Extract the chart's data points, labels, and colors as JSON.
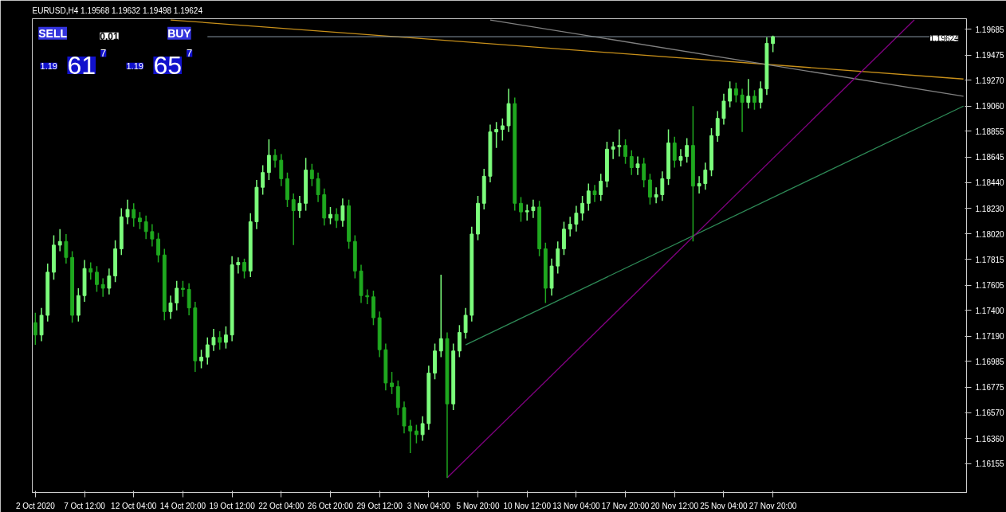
{
  "chart_data": {
    "type": "candlestick",
    "title": "EURUSD,H4  1.19568 1.19632 1.19498 1.19624",
    "categories": [
      "2 Oct 2020",
      null,
      null,
      null,
      null,
      null,
      null,
      null,
      "7 Oct 12:00",
      null,
      null,
      null,
      null,
      null,
      null,
      null,
      "12 Oct 04:00",
      null,
      null,
      null,
      null,
      null,
      null,
      null,
      "14 Oct 20:00",
      null,
      null,
      null,
      null,
      null,
      null,
      null,
      "19 Oct 12:00",
      null,
      null,
      null,
      null,
      null,
      null,
      null,
      "22 Oct 04:00",
      null,
      null,
      null,
      null,
      null,
      null,
      null,
      "26 Oct 20:00",
      null,
      null,
      null,
      null,
      null,
      null,
      null,
      "29 Oct 12:00",
      null,
      null,
      null,
      null,
      null,
      null,
      null,
      "3 Nov 04:00",
      null,
      null,
      null,
      null,
      null,
      null,
      null,
      "5 Nov 20:00",
      null,
      null,
      null,
      null,
      null,
      null,
      null,
      "10 Nov 12:00",
      null,
      null,
      null,
      null,
      null,
      null,
      null,
      "13 Nov 04:00",
      null,
      null,
      null,
      null,
      null,
      null,
      null,
      "17 Nov 20:00",
      null,
      null,
      null,
      null,
      null,
      null,
      null,
      "20 Nov 12:00",
      null,
      null,
      null,
      null,
      null,
      null,
      null,
      "25 Nov 04:00",
      null,
      null,
      null,
      null,
      null,
      null,
      null,
      "27 Nov 20:00",
      null,
      null,
      null,
      null,
      null,
      null,
      null,
      null,
      null,
      null,
      null,
      null,
      null,
      null,
      null,
      null,
      null,
      null,
      null,
      null,
      null,
      null,
      null,
      null,
      null,
      null,
      null,
      null,
      null,
      null,
      null
    ],
    "ohlc": [
      [
        1.173,
        1.1738,
        1.1712,
        1.172
      ],
      [
        1.172,
        1.1742,
        1.1715,
        1.1736
      ],
      [
        1.1736,
        1.1778,
        1.1731,
        1.1771
      ],
      [
        1.1771,
        1.1801,
        1.1765,
        1.1793
      ],
      [
        1.1793,
        1.1806,
        1.1788,
        1.1796
      ],
      [
        1.1796,
        1.1802,
        1.1778,
        1.1783
      ],
      [
        1.1783,
        1.1788,
        1.173,
        1.1736
      ],
      [
        1.1736,
        1.1758,
        1.1731,
        1.1752
      ],
      [
        1.1752,
        1.1781,
        1.1747,
        1.1774
      ],
      [
        1.1774,
        1.1779,
        1.1765,
        1.1771
      ],
      [
        1.1771,
        1.1776,
        1.1755,
        1.1761
      ],
      [
        1.1761,
        1.1766,
        1.1751,
        1.1758
      ],
      [
        1.1758,
        1.1774,
        1.1753,
        1.1768
      ],
      [
        1.1768,
        1.1797,
        1.1763,
        1.179
      ],
      [
        1.179,
        1.1823,
        1.1785,
        1.1816
      ],
      [
        1.1816,
        1.183,
        1.181,
        1.1822
      ],
      [
        1.1822,
        1.1827,
        1.1808,
        1.1815
      ],
      [
        1.1815,
        1.182,
        1.1806,
        1.1812
      ],
      [
        1.1812,
        1.1817,
        1.1798,
        1.1804
      ],
      [
        1.1804,
        1.181,
        1.1792,
        1.1798
      ],
      [
        1.1798,
        1.1803,
        1.1779,
        1.1785
      ],
      [
        1.1785,
        1.179,
        1.1732,
        1.1739
      ],
      [
        1.1739,
        1.1752,
        1.1733,
        1.1746
      ],
      [
        1.1746,
        1.1764,
        1.174,
        1.1758
      ],
      [
        1.1758,
        1.1764,
        1.1751,
        1.1757
      ],
      [
        1.1757,
        1.1762,
        1.1736,
        1.1742
      ],
      [
        1.1742,
        1.1747,
        1.169,
        1.1699
      ],
      [
        1.1699,
        1.1708,
        1.1693,
        1.1702
      ],
      [
        1.1702,
        1.1718,
        1.1696,
        1.1712
      ],
      [
        1.1712,
        1.1725,
        1.1707,
        1.1718
      ],
      [
        1.1718,
        1.1723,
        1.1708,
        1.1714
      ],
      [
        1.1714,
        1.1727,
        1.1709,
        1.172
      ],
      [
        1.172,
        1.1784,
        1.1715,
        1.1777
      ],
      [
        1.1777,
        1.1783,
        1.177,
        1.1779
      ],
      [
        1.1779,
        1.1782,
        1.1766,
        1.1772
      ],
      [
        1.1772,
        1.1819,
        1.1767,
        1.1812
      ],
      [
        1.1812,
        1.1846,
        1.1806,
        1.184
      ],
      [
        1.184,
        1.1858,
        1.1834,
        1.1852
      ],
      [
        1.1852,
        1.1879,
        1.1846,
        1.1866
      ],
      [
        1.1866,
        1.1871,
        1.1856,
        1.1862
      ],
      [
        1.1862,
        1.1867,
        1.1841,
        1.1847
      ],
      [
        1.1847,
        1.1852,
        1.1824,
        1.183
      ],
      [
        1.183,
        1.1835,
        1.1793,
        1.1821
      ],
      [
        1.1821,
        1.1833,
        1.1815,
        1.1827
      ],
      [
        1.1827,
        1.1864,
        1.1821,
        1.1854
      ],
      [
        1.1854,
        1.1859,
        1.1841,
        1.1847
      ],
      [
        1.1847,
        1.1852,
        1.1828,
        1.1834
      ],
      [
        1.1834,
        1.1839,
        1.1809,
        1.1815
      ],
      [
        1.1815,
        1.1824,
        1.181,
        1.1818
      ],
      [
        1.1818,
        1.1823,
        1.1807,
        1.1813
      ],
      [
        1.1813,
        1.1831,
        1.1808,
        1.1825
      ],
      [
        1.1825,
        1.183,
        1.179,
        1.1796
      ],
      [
        1.1796,
        1.1801,
        1.1766,
        1.1772
      ],
      [
        1.1772,
        1.1777,
        1.1746,
        1.1752
      ],
      [
        1.1752,
        1.1757,
        1.1745,
        1.1751
      ],
      [
        1.1751,
        1.1756,
        1.1728,
        1.1734
      ],
      [
        1.1734,
        1.1739,
        1.1702,
        1.1708
      ],
      [
        1.1708,
        1.1713,
        1.1675,
        1.1681
      ],
      [
        1.1681,
        1.169,
        1.1672,
        1.1678
      ],
      [
        1.1678,
        1.1683,
        1.1655,
        1.1661
      ],
      [
        1.1661,
        1.1666,
        1.164,
        1.1646
      ],
      [
        1.1646,
        1.1651,
        1.1624,
        1.1642
      ],
      [
        1.1642,
        1.1647,
        1.1632,
        1.1639
      ],
      [
        1.1639,
        1.1654,
        1.1634,
        1.1648
      ],
      [
        1.1648,
        1.1695,
        1.1643,
        1.1689
      ],
      [
        1.1689,
        1.1713,
        1.1684,
        1.1707
      ],
      [
        1.1707,
        1.1769,
        1.1702,
        1.1717
      ],
      [
        1.1717,
        1.1722,
        1.1604,
        1.1664
      ],
      [
        1.1664,
        1.1713,
        1.1659,
        1.1707
      ],
      [
        1.1707,
        1.1728,
        1.1702,
        1.1722
      ],
      [
        1.1722,
        1.1742,
        1.1717,
        1.1736
      ],
      [
        1.1736,
        1.1808,
        1.1731,
        1.1802
      ],
      [
        1.1802,
        1.1833,
        1.1797,
        1.1827
      ],
      [
        1.1827,
        1.1855,
        1.1822,
        1.1849
      ],
      [
        1.1849,
        1.1891,
        1.1844,
        1.1885
      ],
      [
        1.1885,
        1.1893,
        1.1872,
        1.1887
      ],
      [
        1.1887,
        1.1896,
        1.1878,
        1.189
      ],
      [
        1.189,
        1.192,
        1.1885,
        1.1908
      ],
      [
        1.1908,
        1.1913,
        1.1821,
        1.1827
      ],
      [
        1.1827,
        1.1832,
        1.1812,
        1.182
      ],
      [
        1.182,
        1.1826,
        1.1813,
        1.1821
      ],
      [
        1.1821,
        1.183,
        1.1815,
        1.1824
      ],
      [
        1.1824,
        1.1829,
        1.1784,
        1.179
      ],
      [
        1.179,
        1.1795,
        1.1746,
        1.1758
      ],
      [
        1.1758,
        1.1782,
        1.1752,
        1.1776
      ],
      [
        1.1776,
        1.1796,
        1.177,
        1.179
      ],
      [
        1.179,
        1.1812,
        1.1785,
        1.1806
      ],
      [
        1.1806,
        1.1816,
        1.18,
        1.181
      ],
      [
        1.181,
        1.1825,
        1.1804,
        1.1819
      ],
      [
        1.1819,
        1.1833,
        1.1813,
        1.1827
      ],
      [
        1.1827,
        1.1843,
        1.1821,
        1.1837
      ],
      [
        1.1837,
        1.1842,
        1.1828,
        1.1834
      ],
      [
        1.1834,
        1.1851,
        1.1829,
        1.1845
      ],
      [
        1.1845,
        1.1877,
        1.184,
        1.1871
      ],
      [
        1.1871,
        1.1877,
        1.1863,
        1.1873
      ],
      [
        1.1873,
        1.1887,
        1.1865,
        1.1874
      ],
      [
        1.1874,
        1.1879,
        1.1859,
        1.1865
      ],
      [
        1.1865,
        1.187,
        1.185,
        1.1856
      ],
      [
        1.1856,
        1.1865,
        1.185,
        1.1859
      ],
      [
        1.1859,
        1.1864,
        1.184,
        1.1846
      ],
      [
        1.1846,
        1.1851,
        1.1826,
        1.1832
      ],
      [
        1.1832,
        1.184,
        1.1827,
        1.1834
      ],
      [
        1.1834,
        1.1853,
        1.1829,
        1.1847
      ],
      [
        1.1847,
        1.1887,
        1.1842,
        1.1876
      ],
      [
        1.1876,
        1.1881,
        1.1856,
        1.1862
      ],
      [
        1.1862,
        1.1871,
        1.1857,
        1.1865
      ],
      [
        1.1865,
        1.188,
        1.186,
        1.1874
      ],
      [
        1.1874,
        1.1906,
        1.1796,
        1.1841
      ],
      [
        1.1841,
        1.1849,
        1.1835,
        1.1843
      ],
      [
        1.1843,
        1.186,
        1.1838,
        1.1854
      ],
      [
        1.1854,
        1.1888,
        1.1849,
        1.1882
      ],
      [
        1.1882,
        1.1902,
        1.1877,
        1.1896
      ],
      [
        1.1896,
        1.1916,
        1.1891,
        1.191
      ],
      [
        1.191,
        1.1926,
        1.1905,
        1.192
      ],
      [
        1.192,
        1.1925,
        1.1909,
        1.1915
      ],
      [
        1.1915,
        1.192,
        1.1885,
        1.1909
      ],
      [
        1.1909,
        1.1928,
        1.1904,
        1.1914
      ],
      [
        1.1914,
        1.1919,
        1.1903,
        1.1909
      ],
      [
        1.1909,
        1.1926,
        1.1904,
        1.192
      ],
      [
        1.192,
        1.1962,
        1.1915,
        1.1957
      ],
      [
        1.19568,
        1.19632,
        1.19498,
        1.19624
      ],
      null,
      null,
      null,
      null,
      null,
      null,
      null,
      null,
      null,
      null,
      null,
      null,
      null,
      null,
      null,
      null,
      null,
      null,
      null,
      null,
      null,
      null,
      null,
      null,
      null,
      null,
      null,
      null,
      null,
      null,
      null
    ],
    "colors": [
      "#1fa81f",
      "#7cfc7c",
      "#7cfc7c",
      "#7cfc7c",
      "#7cfc7c",
      "#1fa81f",
      "#1fa81f",
      "#7cfc7c",
      "#7cfc7c",
      "#1fa81f",
      "#1fa81f",
      "#1fa81f",
      "#7cfc7c",
      "#7cfc7c",
      "#7cfc7c",
      "#7cfc7c",
      "#1fa81f",
      "#1fa81f",
      "#1fa81f",
      "#1fa81f",
      "#1fa81f",
      "#1fa81f",
      "#7cfc7c",
      "#7cfc7c",
      "#1fa81f",
      "#1fa81f",
      "#1fa81f",
      "#7cfc7c",
      "#7cfc7c",
      "#7cfc7c",
      "#1fa81f",
      "#7cfc7c",
      "#7cfc7c",
      "#7cfc7c",
      "#1fa81f",
      "#7cfc7c",
      "#7cfc7c",
      "#7cfc7c",
      "#7cfc7c",
      "#1fa81f",
      "#1fa81f",
      "#1fa81f",
      "#1fa81f",
      "#7cfc7c",
      "#7cfc7c",
      "#1fa81f",
      "#1fa81f",
      "#1fa81f",
      "#7cfc7c",
      "#1fa81f",
      "#7cfc7c",
      "#1fa81f",
      "#1fa81f",
      "#1fa81f",
      "#1fa81f",
      "#1fa81f",
      "#1fa81f",
      "#1fa81f",
      "#1fa81f",
      "#1fa81f",
      "#1fa81f",
      "#1fa81f",
      "#1fa81f",
      "#7cfc7c",
      "#7cfc7c",
      "#7cfc7c",
      "#7cfc7c",
      "#1fa81f",
      "#7cfc7c",
      "#7cfc7c",
      "#7cfc7c",
      "#7cfc7c",
      "#7cfc7c",
      "#7cfc7c",
      "#7cfc7c",
      "#7cfc7c",
      "#7cfc7c",
      "#7cfc7c",
      "#1fa81f",
      "#1fa81f",
      "#7cfc7c",
      "#7cfc7c",
      "#1fa81f",
      "#1fa81f",
      "#7cfc7c",
      "#7cfc7c",
      "#7cfc7c",
      "#7cfc7c",
      "#7cfc7c",
      "#7cfc7c",
      "#7cfc7c",
      "#1fa81f",
      "#7cfc7c",
      "#7cfc7c",
      "#7cfc7c",
      "#7cfc7c",
      "#1fa81f",
      "#1fa81f",
      "#7cfc7c",
      "#1fa81f",
      "#1fa81f",
      "#7cfc7c",
      "#7cfc7c",
      "#7cfc7c",
      "#1fa81f",
      "#7cfc7c",
      "#7cfc7c",
      "#1fa81f",
      "#7cfc7c",
      "#7cfc7c",
      "#7cfc7c",
      "#7cfc7c",
      "#7cfc7c",
      "#7cfc7c",
      "#1fa81f",
      "#1fa81f",
      "#7cfc7c",
      "#1fa81f",
      "#7cfc7c",
      "#7cfc7c",
      "#7cfc7c",
      null,
      null,
      null,
      null,
      null,
      null,
      null,
      null,
      null,
      null,
      null,
      null,
      null,
      null,
      null,
      null,
      null,
      null,
      null,
      null,
      null,
      null,
      null,
      null,
      null,
      null,
      null,
      null,
      null,
      null,
      null
    ],
    "series": [
      {
        "type": "line",
        "color": "#c8901a",
        "values": [
          null,
          null,
          null,
          null,
          null,
          null,
          null,
          null,
          null,
          null,
          null,
          null,
          null,
          null,
          null,
          null,
          null,
          null,
          null,
          null,
          null,
          null,
          1.1976,
          null,
          null,
          null,
          null,
          null,
          null,
          null,
          null,
          null,
          null,
          null,
          null,
          null,
          null,
          null,
          null,
          null,
          null,
          null,
          null,
          null,
          null,
          null,
          null,
          null,
          null,
          null,
          null,
          null,
          null,
          null,
          null,
          null,
          null,
          null,
          null,
          null,
          null,
          null,
          null,
          null,
          null,
          null,
          null,
          null,
          null,
          null,
          null,
          null,
          null,
          null,
          null,
          null,
          null,
          null,
          null,
          null,
          null,
          null,
          null,
          null,
          null,
          null,
          null,
          null,
          null,
          null,
          null,
          null,
          null,
          null,
          null,
          null,
          null,
          null,
          null,
          null,
          null,
          null,
          null,
          null,
          null,
          null,
          null,
          null,
          null,
          null,
          null,
          null,
          null,
          null,
          null,
          null,
          null,
          null,
          null,
          null,
          null,
          null,
          null,
          null,
          null,
          null,
          null,
          null,
          null,
          null,
          null,
          null,
          null,
          null,
          null,
          null,
          null,
          null,
          null,
          null,
          null,
          null,
          null,
          null,
          null,
          null,
          null,
          null,
          null,
          null,
          null,
          1.1928
        ]
      },
      {
        "type": "line",
        "color": "#808080",
        "values": [
          null,
          null,
          null,
          null,
          null,
          null,
          null,
          null,
          null,
          null,
          null,
          null,
          null,
          null,
          null,
          null,
          null,
          null,
          null,
          null,
          null,
          null,
          null,
          null,
          null,
          null,
          null,
          null,
          null,
          null,
          null,
          null,
          null,
          null,
          null,
          null,
          null,
          null,
          null,
          null,
          null,
          null,
          null,
          null,
          null,
          null,
          null,
          null,
          null,
          null,
          null,
          null,
          null,
          null,
          null,
          null,
          null,
          null,
          null,
          null,
          null,
          null,
          null,
          null,
          null,
          null,
          null,
          null,
          null,
          null,
          null,
          null,
          null,
          null,
          1.1976,
          null,
          null,
          null,
          null,
          null,
          null,
          null,
          null,
          null,
          null,
          null,
          null,
          null,
          null,
          null,
          null,
          null,
          null,
          null,
          null,
          null,
          null,
          null,
          null,
          null,
          null,
          null,
          null,
          null,
          null,
          null,
          null,
          null,
          null,
          null,
          null,
          null,
          null,
          null,
          null,
          null,
          null,
          null,
          null,
          null,
          null,
          null,
          null,
          null,
          null,
          null,
          null,
          null,
          null,
          null,
          null,
          null,
          null,
          null,
          null,
          null,
          null,
          null,
          null,
          null,
          null,
          null,
          null,
          null,
          null,
          null,
          null,
          null,
          null,
          null,
          null,
          1.1914
        ]
      },
      {
        "type": "line",
        "color": "#2e8b57",
        "values": [
          null,
          null,
          null,
          null,
          null,
          null,
          null,
          null,
          null,
          null,
          null,
          null,
          null,
          null,
          null,
          null,
          null,
          null,
          null,
          null,
          null,
          null,
          null,
          null,
          null,
          null,
          null,
          null,
          null,
          null,
          null,
          null,
          null,
          null,
          null,
          null,
          null,
          null,
          null,
          null,
          null,
          null,
          null,
          null,
          null,
          null,
          null,
          null,
          null,
          null,
          null,
          null,
          null,
          null,
          null,
          null,
          null,
          null,
          null,
          null,
          null,
          null,
          null,
          null,
          null,
          null,
          null,
          null,
          null,
          null,
          1.1712,
          null,
          null,
          null,
          null,
          null,
          null,
          null,
          null,
          null,
          null,
          null,
          null,
          null,
          null,
          null,
          null,
          null,
          null,
          null,
          null,
          null,
          null,
          null,
          null,
          null,
          null,
          null,
          null,
          null,
          null,
          null,
          null,
          null,
          null,
          null,
          null,
          null,
          null,
          null,
          null,
          null,
          null,
          null,
          null,
          null,
          null,
          null,
          null,
          null,
          null,
          null,
          null,
          null,
          null,
          null,
          null,
          null,
          null,
          null,
          null,
          null,
          null,
          null,
          null,
          null,
          null,
          null,
          null,
          null,
          null,
          null,
          null,
          null,
          null,
          null,
          null,
          null,
          null,
          null,
          null,
          1.1906
        ]
      },
      {
        "type": "line",
        "color": "#800080",
        "values": [
          null,
          null,
          null,
          null,
          null,
          null,
          null,
          null,
          null,
          null,
          null,
          null,
          null,
          null,
          null,
          null,
          null,
          null,
          null,
          null,
          null,
          null,
          null,
          null,
          null,
          null,
          null,
          null,
          null,
          null,
          null,
          null,
          null,
          null,
          null,
          null,
          null,
          null,
          null,
          null,
          null,
          null,
          null,
          null,
          null,
          null,
          null,
          null,
          null,
          null,
          null,
          null,
          null,
          null,
          null,
          null,
          null,
          null,
          null,
          null,
          null,
          null,
          null,
          null,
          null,
          null,
          null,
          1.1604,
          null,
          null,
          null,
          null,
          null,
          null,
          null,
          null,
          null,
          null,
          null,
          null,
          null,
          null,
          null,
          null,
          null,
          null,
          null,
          null,
          null,
          null,
          null,
          null,
          null,
          null,
          null,
          null,
          null,
          null,
          null,
          null,
          null,
          null,
          null,
          null,
          null,
          null,
          null,
          null,
          null,
          null,
          null,
          null,
          null,
          null,
          null,
          null,
          null,
          null,
          null,
          null,
          null,
          null,
          null,
          null,
          null,
          null,
          null,
          null,
          null,
          null,
          null,
          null,
          null,
          null,
          null,
          null,
          null,
          null,
          null,
          null,
          null,
          null,
          null,
          1.1976,
          null,
          null,
          null,
          null,
          null,
          null,
          null,
          null
        ]
      }
    ],
    "ref_lines": [
      {
        "axis": "y",
        "value": 1.19624,
        "label": "1.19624",
        "color": "#8a9aa6"
      }
    ],
    "ylim": [
      1.1592,
      1.1977
    ],
    "yticks": [
      1.19685,
      1.19475,
      {
        "value": 1.1927,
        "label": "1.19270"
      },
      {
        "value": 1.1906,
        "label": "1.19060"
      },
      1.18855,
      1.18645,
      {
        "value": 1.1844,
        "label": "1.18440"
      },
      {
        "value": 1.1823,
        "label": "1.18230"
      },
      {
        "value": 1.1802,
        "label": "1.18020"
      },
      1.17815,
      1.17605,
      {
        "value": 1.174,
        "label": "1.17400"
      },
      {
        "value": 1.1719,
        "label": "1.17190"
      },
      1.16985,
      1.16775,
      {
        "value": 1.1657,
        "label": "1.16570"
      },
      {
        "value": 1.1636,
        "label": "1.16360"
      },
      1.16155
    ],
    "annotations": [
      "SELL",
      "0.01",
      "BUY",
      "1.19",
      "61",
      "7",
      "1.19",
      "65",
      "7"
    ],
    "grid": false
  }
}
